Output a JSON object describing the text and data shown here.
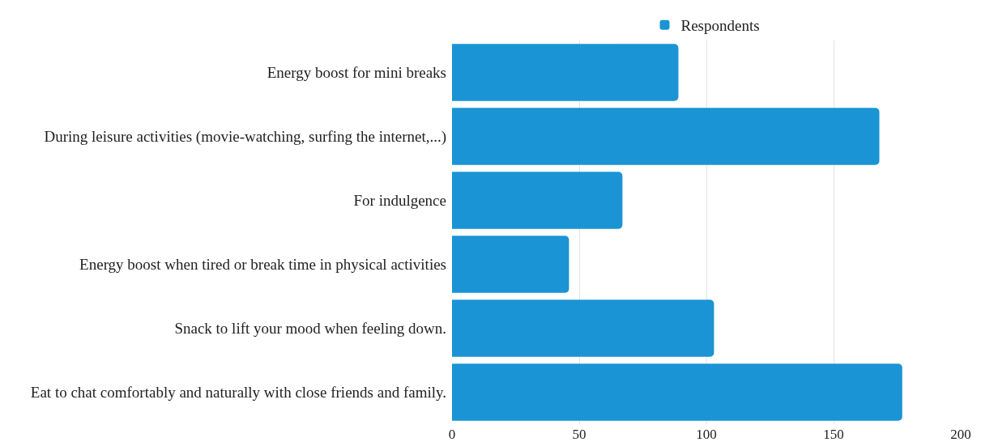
{
  "chart_data": {
    "type": "bar",
    "orientation": "horizontal",
    "categories": [
      "Energy boost for mini breaks",
      "During leisure activities (movie-watching, surfing the internet,...)",
      "For indulgence",
      "Energy boost when tired or break time in physical activities",
      "Snack to lift your mood when feeling down.",
      "Eat to chat comfortably and naturally with close friends and family."
    ],
    "series": [
      {
        "name": "Respondents",
        "color": "#1a94d4",
        "values": [
          89,
          168,
          67,
          46,
          103,
          177
        ]
      }
    ],
    "xlim": [
      0,
      200
    ],
    "xticks": [
      0,
      50,
      100,
      150,
      200
    ],
    "grid": "x",
    "legend": "top"
  }
}
